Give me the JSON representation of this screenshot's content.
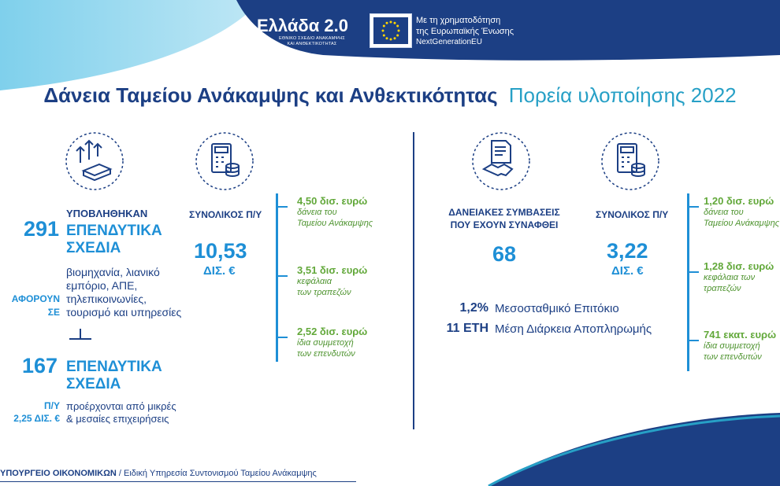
{
  "header": {
    "logo_main": "Ελλάδα 2.0",
    "logo_sub_line1": "ΕΘΝΙΚΟ ΣΧΕΔΙΟ ΑΝΑΚΑΜΨΗΣ",
    "logo_sub_line2": "ΚΑΙ ΑΝΘΕΚΤΙΚΟΤΗΤΑΣ",
    "eu_line1": "Με τη χρηματοδότηση",
    "eu_line2": "της Ευρωπαϊκής Ένωσης",
    "eu_line3": "NextGenerationEU"
  },
  "title": {
    "main": "Δάνεια Ταμείου Ανάκαμψης και Ανθεκτικότητας",
    "sub": "Πορεία υλοποίησης 2022"
  },
  "left": {
    "submitted_label": "ΥΠΟΒΛΗΘΗΚΑΝ",
    "plans_count": "291",
    "plans_label_1": "ΕΠΕΝΔΥΤΙΚΑ",
    "plans_label_2": "ΣΧΕΔΙΑ",
    "concern_label_1": "ΑΦΟΡΟΥΝ",
    "concern_label_2": "ΣΕ",
    "sectors_1": "βιομηχανία, λιανικό",
    "sectors_2": "εμπόριο, ΑΠΕ,",
    "sectors_3": "τηλεπικοινωνίες,",
    "sectors_4": "τουρισμό και υπηρεσίες",
    "sme_count": "167",
    "sme_label_1": "ΕΠΕΝΔΥΤΙΚΑ",
    "sme_label_2": "ΣΧΕΔΙΑ",
    "budget_label": "Π/Υ",
    "budget_value": "2,25 ΔΙΣ. €",
    "sme_desc_1": "προέρχονται από μικρές",
    "sme_desc_2": "& μεσαίες επιχειρήσεις",
    "total_label": "ΣΥΝΟΛΙΚΟΣ Π/Υ",
    "total_value": "10,53",
    "total_unit": "ΔΙΣ. €",
    "breakdown": [
      {
        "value": "4,50 δισ. ευρώ",
        "desc1": "δάνεια του",
        "desc2": "Ταμείου Ανάκαμψης"
      },
      {
        "value": "3,51 δισ. ευρώ",
        "desc1": "κεφάλαια",
        "desc2": "των τραπεζών"
      },
      {
        "value": "2,52 δισ. ευρώ",
        "desc1": "ίδια συμμετοχή",
        "desc2": "των επενδυτών"
      }
    ]
  },
  "right": {
    "contracts_label_1": "ΔΑΝΕΙΑΚΕΣ ΣΥΜΒΑΣΕΙΣ",
    "contracts_label_2": "ΠΟΥ ΕΧΟΥΝ ΣΥΝΑΦΘΕΙ",
    "contracts_count": "68",
    "total_label": "ΣΥΝΟΛΙΚΟΣ Π/Υ",
    "total_value": "3,22",
    "total_unit": "ΔΙΣ. €",
    "rate_value": "1,2%",
    "rate_label": "Μεσοσταθμικό Επιτόκιο",
    "years_value": "11 ΕΤΗ",
    "years_label": "Μέση Διάρκεια Αποπληρωμής",
    "breakdown": [
      {
        "value": "1,20 δισ. ευρώ",
        "desc1": "δάνεια του",
        "desc2": "Ταμείου Ανάκαμψης"
      },
      {
        "value": "1,28 δισ. ευρώ",
        "desc1": "κεφάλαια των",
        "desc2": "τραπεζών"
      },
      {
        "value": "741 εκατ. ευρώ",
        "desc1": "ίδια συμμετοχή",
        "desc2": "των επενδυτών"
      }
    ]
  },
  "footer": {
    "ministry": "ΥΠΟΥΡΓΕΙΟ ΟΙΚΟΝΟΜΙΚΩΝ",
    "service": " / Ειδική Υπηρεσία Συντονισμού Ταμείου Ανάκαμψης"
  },
  "colors": {
    "navy": "#1c3f84",
    "blue": "#1e8fd6",
    "green": "#62a83a",
    "title_accent": "#27a0c6"
  }
}
